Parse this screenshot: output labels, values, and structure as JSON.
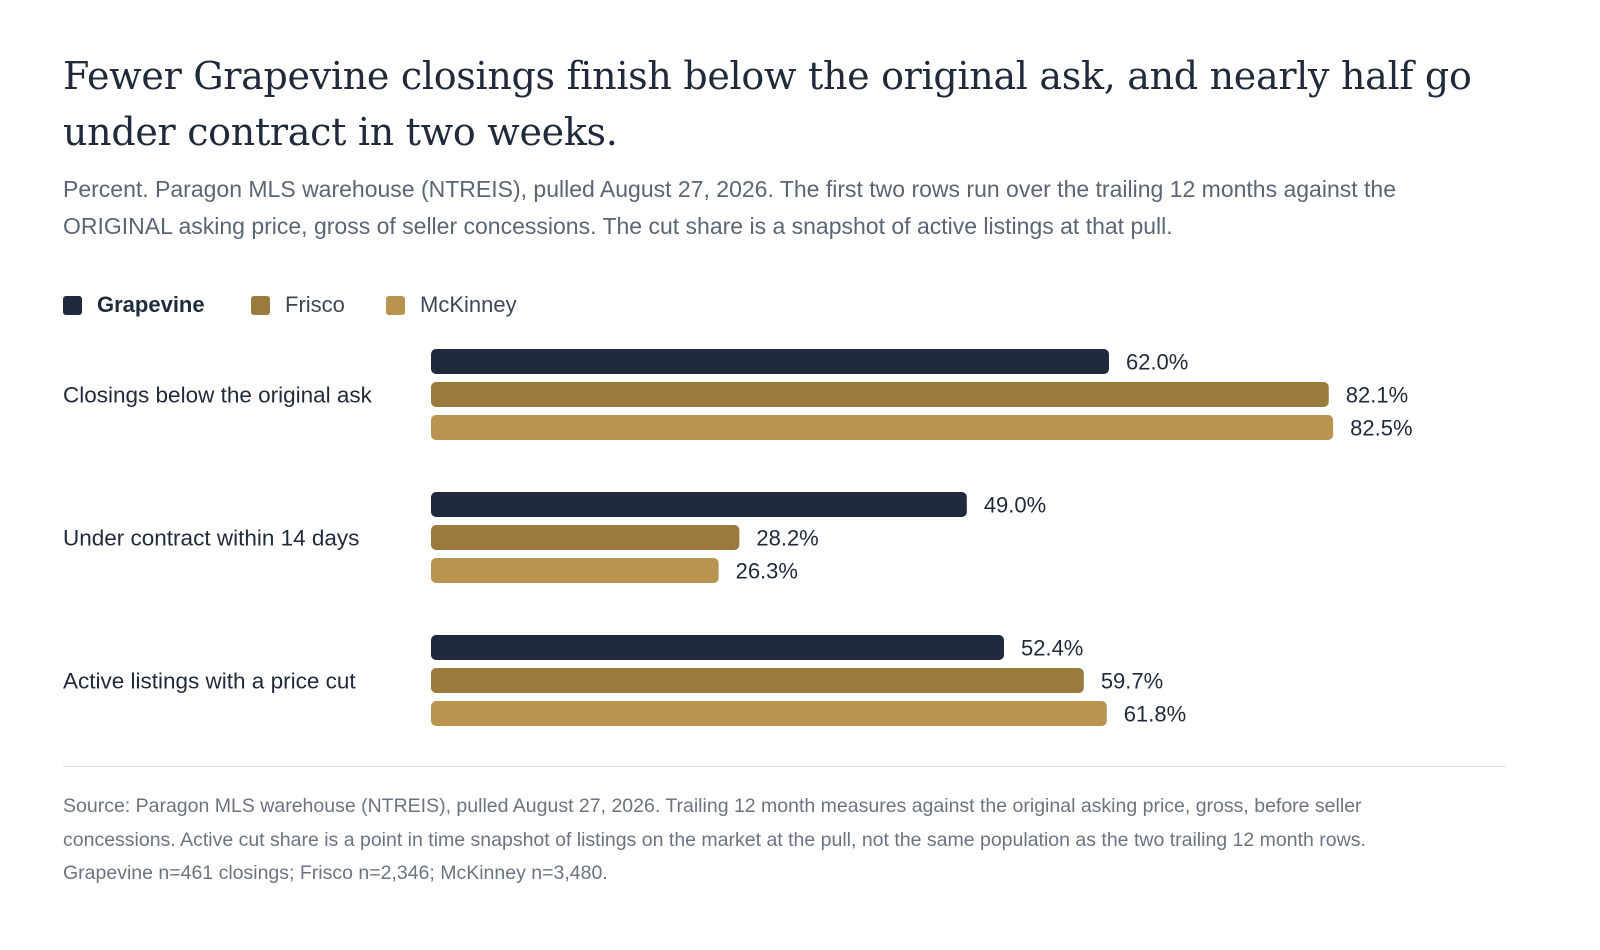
{
  "title_lines": [
    "Fewer Grapevine closings finish below the original ask, and nearly half go",
    "under contract in two weeks."
  ],
  "subtitle_lines": [
    "Percent. Paragon MLS warehouse (NTREIS), pulled August 27, 2026. The first two rows run over the trailing 12 months against the",
    "ORIGINAL asking price, gross of seller concessions. The cut share is a snapshot of active listings at that pull."
  ],
  "colors": {
    "grapevine": "#1f2b3c",
    "frisco": "#9a7b3d",
    "mckinney": "#b8944f"
  },
  "legend": [
    {
      "label": "Grapevine",
      "color": "#1f2b3c",
      "bold": true
    },
    {
      "label": "Frisco",
      "color": "#9a7b3d",
      "bold": false
    },
    {
      "label": "McKinney",
      "color": "#b8944f",
      "bold": false
    }
  ],
  "chart_data": {
    "type": "bar",
    "orientation": "horizontal",
    "categories": [
      "Closings below the original ask",
      "Under contract within 14 days",
      "Active listings with a price cut"
    ],
    "series": [
      {
        "name": "Grapevine",
        "values": [
          62.0,
          49.0,
          52.4
        ],
        "labels": [
          "62.0%",
          "49.0%",
          "52.4%"
        ]
      },
      {
        "name": "Frisco",
        "values": [
          82.1,
          28.2,
          59.7
        ],
        "labels": [
          "82.1%",
          "28.2%",
          "59.7%"
        ]
      },
      {
        "name": "McKinney",
        "values": [
          82.5,
          26.3,
          61.8
        ],
        "labels": [
          "82.5%",
          "26.3%",
          "61.8%"
        ]
      }
    ],
    "xlim": [
      0,
      100
    ],
    "grid": false,
    "legend_position": "top-left"
  },
  "source_lines": [
    "Source: Paragon MLS warehouse (NTREIS), pulled August 27, 2026. Trailing 12 month measures against the original asking price, gross, before seller",
    "concessions. Active cut share is a point in time snapshot of listings on the market at the pull, not the same population as the two trailing 12 month rows.",
    "Grapevine n=461 closings; Frisco n=2,346; McKinney n=3,480."
  ]
}
